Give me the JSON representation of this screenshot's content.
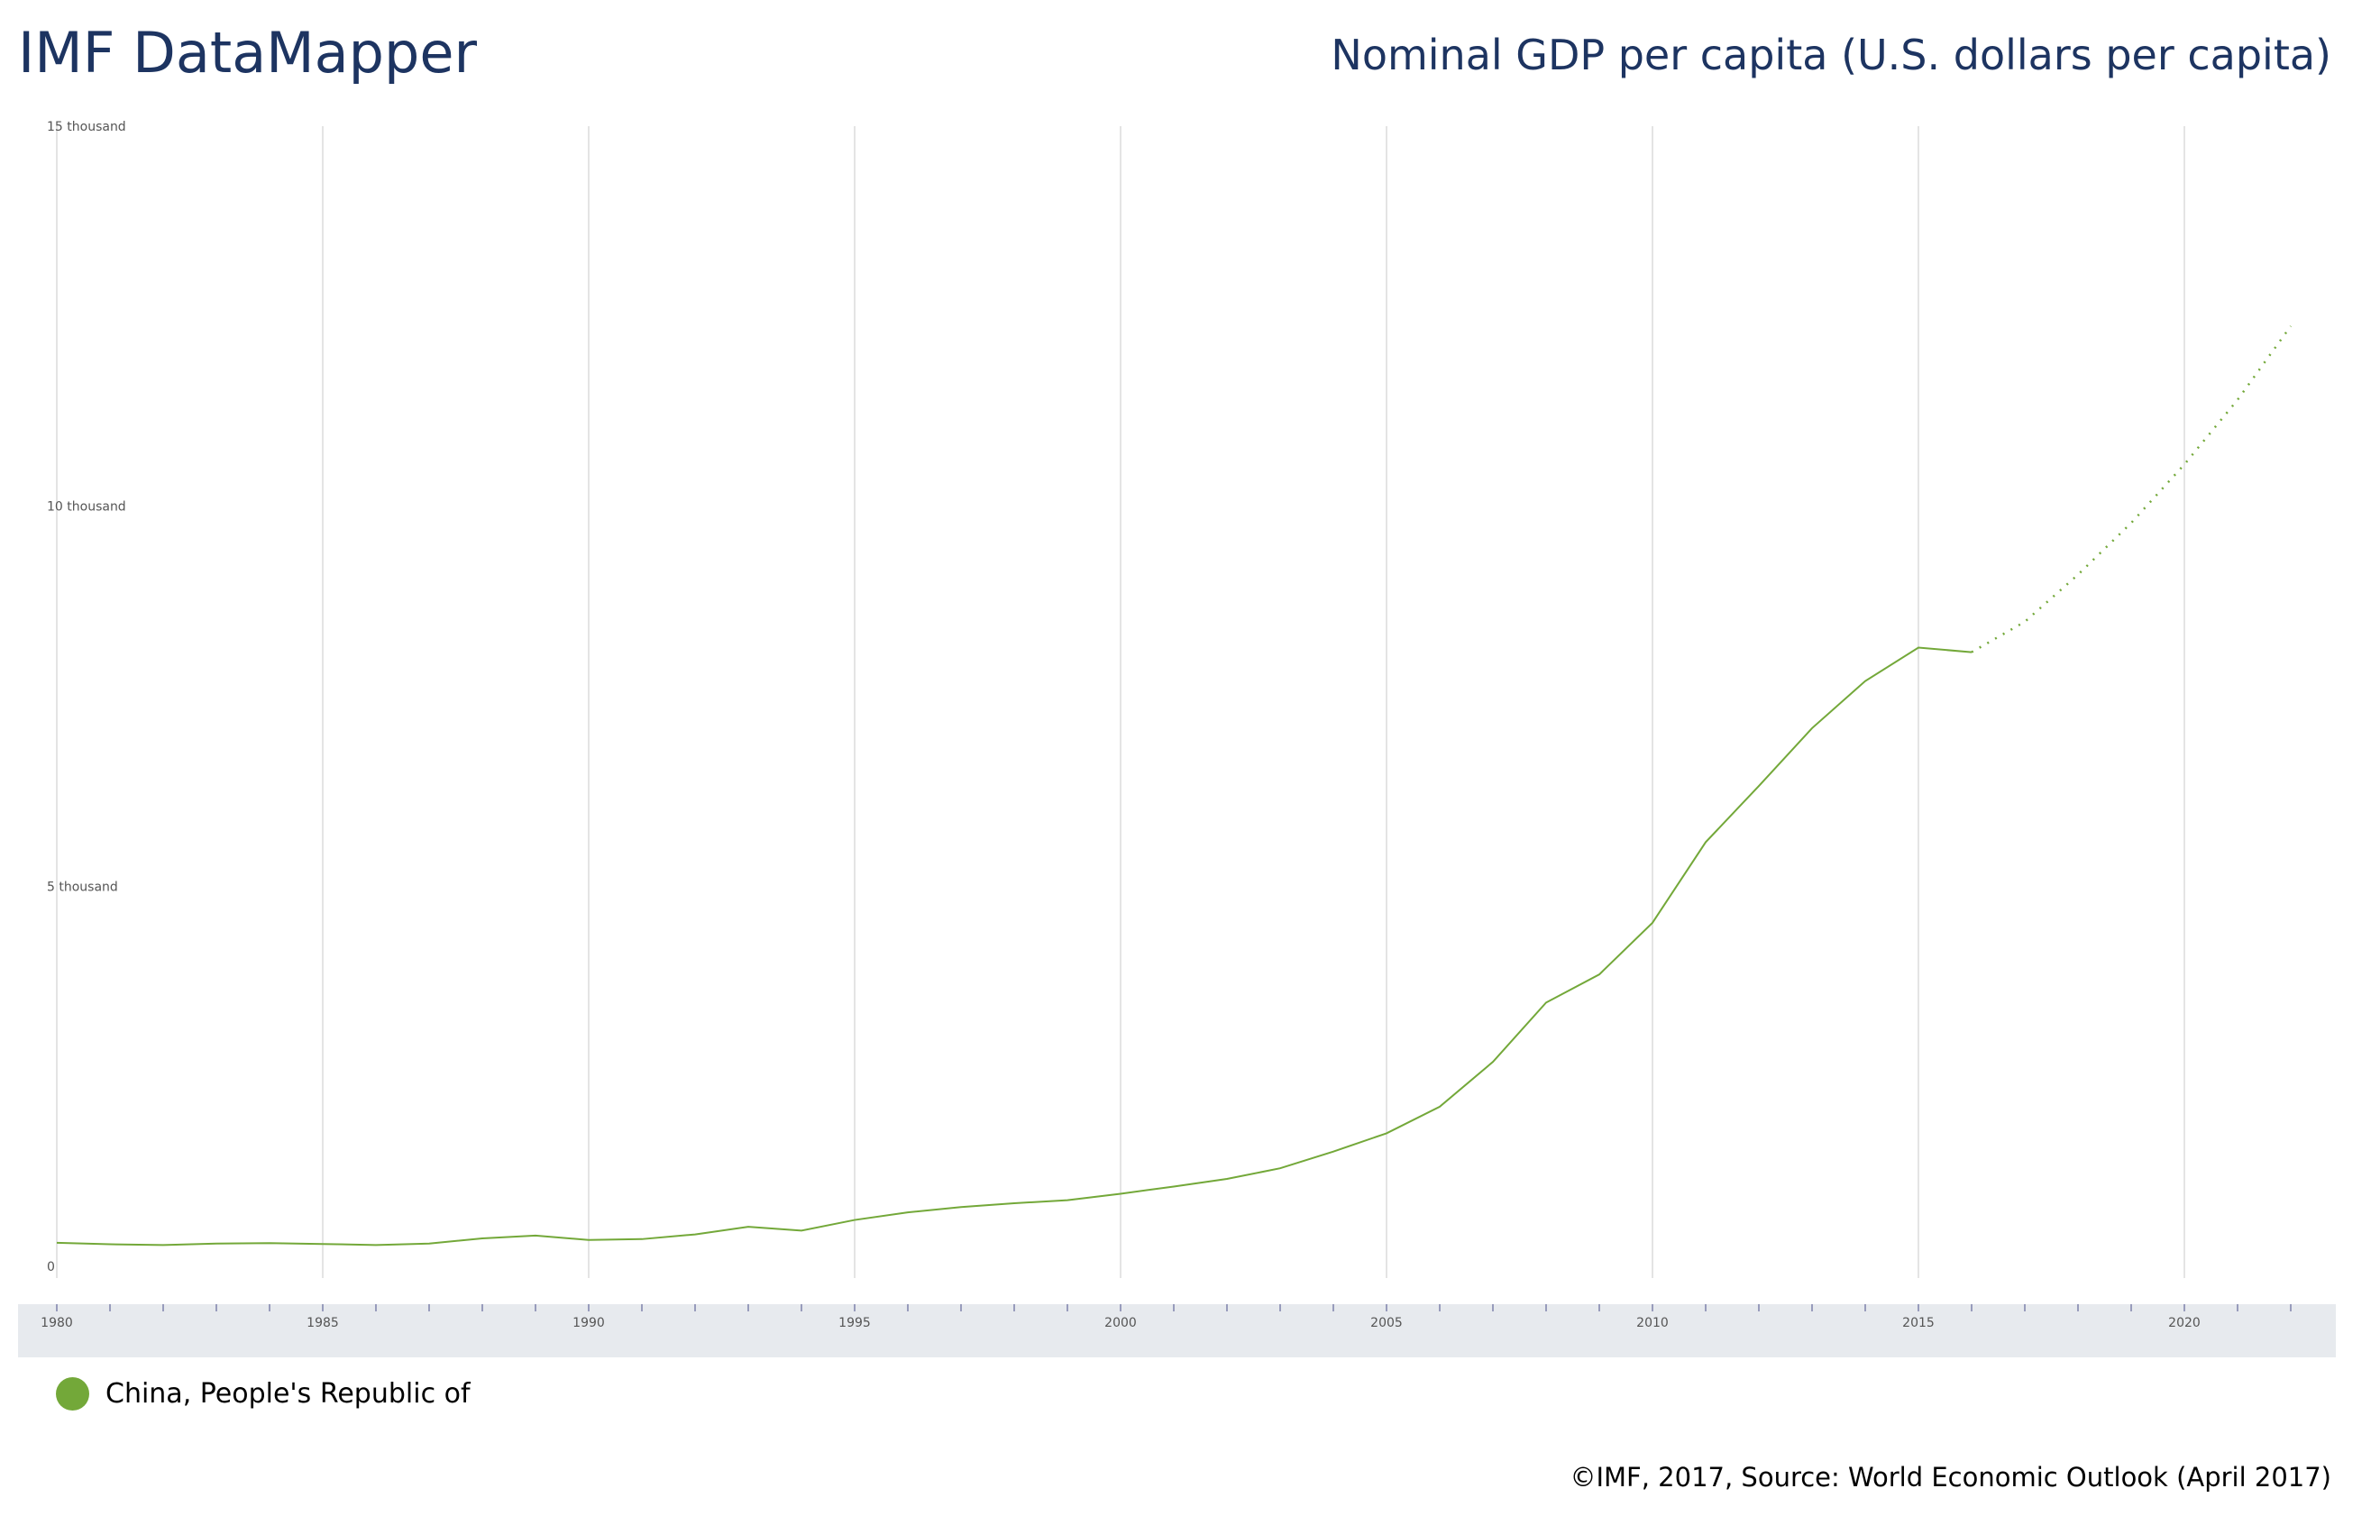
{
  "header": {
    "app_title": "IMF DataMapper",
    "indicator_title": "Nominal GDP per capita (U.S. dollars per capita)"
  },
  "colors": {
    "series": "#73a839",
    "title": "#1d3461",
    "timeline_bg": "#e7eaee",
    "tick": "#4a4f8a"
  },
  "chart_data": {
    "type": "line",
    "title": "Nominal GDP per capita (U.S. dollars per capita)",
    "xlabel": "",
    "ylabel": "",
    "xlim": [
      1980,
      2022
    ],
    "ylim": [
      0,
      15000
    ],
    "grid": true,
    "y_ticks": [
      {
        "value": 0,
        "label": "0"
      },
      {
        "value": 5000,
        "label": "5 thousand"
      },
      {
        "value": 10000,
        "label": "10 thousand"
      },
      {
        "value": 15000,
        "label": "15 thousand"
      }
    ],
    "x_ticks": [
      "1980",
      "1985",
      "1990",
      "1995",
      "2000",
      "2005",
      "2010",
      "2015",
      "2020"
    ],
    "legend_position": "bottom-left",
    "series": [
      {
        "name": "China, People's Republic of",
        "actual_until": 2016,
        "x": [
          1980,
          1981,
          1982,
          1983,
          1984,
          1985,
          1986,
          1987,
          1988,
          1989,
          1990,
          1991,
          1992,
          1993,
          1994,
          1995,
          1996,
          1997,
          1998,
          1999,
          2000,
          2001,
          2002,
          2003,
          2004,
          2005,
          2006,
          2007,
          2008,
          2009,
          2010,
          2011,
          2012,
          2013,
          2014,
          2015,
          2016,
          2017,
          2018,
          2019,
          2020,
          2021,
          2022
        ],
        "values": [
          310,
          290,
          280,
          300,
          305,
          294,
          280,
          300,
          368,
          405,
          347,
          358,
          420,
          520,
          470,
          610,
          710,
          780,
          830,
          870,
          955,
          1050,
          1150,
          1290,
          1510,
          1750,
          2100,
          2690,
          3470,
          3840,
          4520,
          5580,
          6320,
          7080,
          7700,
          8140,
          8080,
          8480,
          9100,
          9780,
          10550,
          11400,
          12370
        ]
      }
    ]
  },
  "legend": {
    "items": [
      {
        "label": "China, People's Republic of"
      }
    ]
  },
  "footer": {
    "source": "©IMF, 2017, Source: World Economic Outlook (April 2017)"
  }
}
